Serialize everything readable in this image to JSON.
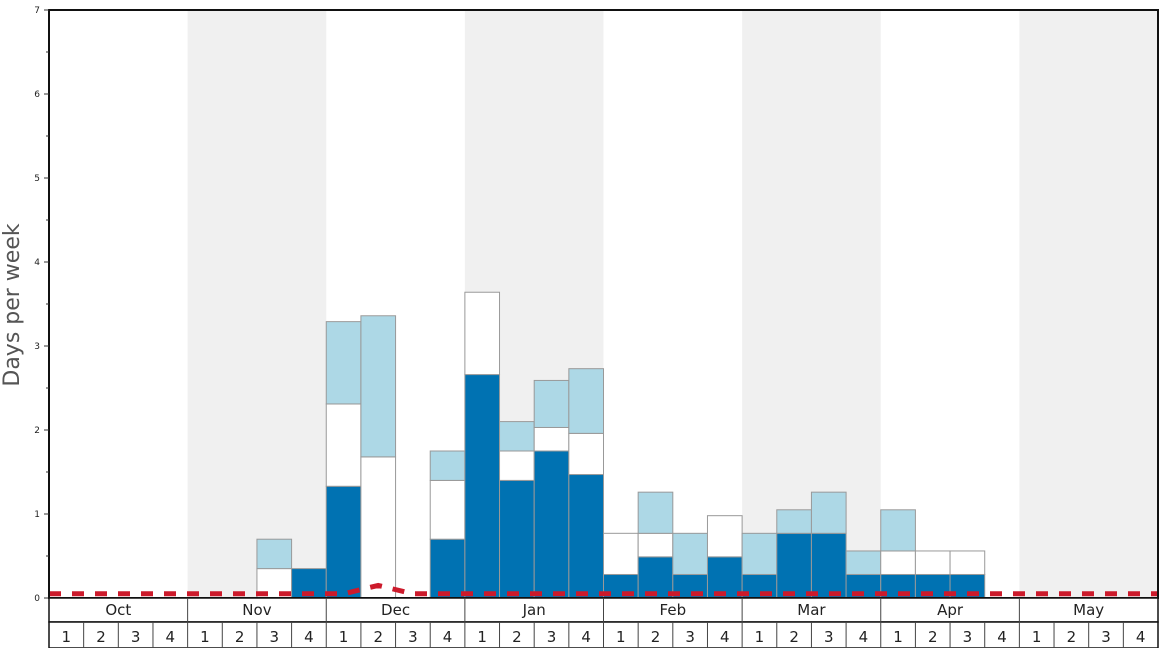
{
  "chart_data": {
    "type": "bar",
    "stacked": true,
    "ylabel": "Days per week",
    "ylim": [
      0,
      7
    ],
    "yticks": [
      "0",
      "1",
      "2",
      "3",
      "4",
      "5",
      "6",
      "7"
    ],
    "months": [
      "Oct",
      "Nov",
      "Dec",
      "Jan",
      "Feb",
      "Mar",
      "Apr",
      "May"
    ],
    "week_labels": [
      "1",
      "2",
      "3",
      "4"
    ],
    "alternating_month_shading": true,
    "categories": [
      "Oct-1",
      "Oct-2",
      "Oct-3",
      "Oct-4",
      "Nov-1",
      "Nov-2",
      "Nov-3",
      "Nov-4",
      "Dec-1",
      "Dec-2",
      "Dec-3",
      "Dec-4",
      "Jan-1",
      "Jan-2",
      "Jan-3",
      "Jan-4",
      "Feb-1",
      "Feb-2",
      "Feb-3",
      "Feb-4",
      "Mar-1",
      "Mar-2",
      "Mar-3",
      "Mar-4",
      "Apr-1",
      "Apr-2",
      "Apr-3",
      "Apr-4",
      "May-1",
      "May-2",
      "May-3",
      "May-4"
    ],
    "series": [
      {
        "color": "#0072b2",
        "values": [
          0,
          0,
          0,
          0,
          0,
          0,
          0,
          0.35,
          1.33,
          0,
          0,
          0.7,
          2.66,
          1.4,
          1.75,
          1.47,
          0.28,
          0.49,
          0.28,
          0.49,
          0.28,
          0.77,
          0.77,
          0.28,
          0.28,
          0.28,
          0.28,
          0,
          0,
          0,
          0,
          0
        ]
      },
      {
        "color": "#ffffff",
        "values": [
          0,
          0,
          0,
          0,
          0,
          0,
          0.35,
          0,
          0.98,
          1.68,
          0,
          0.7,
          0.98,
          0.35,
          0.28,
          0.49,
          0.49,
          0.28,
          0,
          0.49,
          0,
          0,
          0,
          0,
          0.28,
          0.28,
          0.28,
          0,
          0,
          0,
          0,
          0
        ]
      },
      {
        "color": "#add8e6",
        "values": [
          0,
          0,
          0,
          0,
          0,
          0,
          0.35,
          0,
          0.98,
          1.68,
          0,
          0.35,
          0,
          0.35,
          0.56,
          0.77,
          0,
          0.49,
          0.49,
          0,
          0.49,
          0.28,
          0.49,
          0.28,
          0.49,
          0,
          0,
          0,
          0,
          0,
          0,
          0
        ]
      }
    ],
    "reference_line": {
      "color": "#cc1a2b",
      "style": "dashed",
      "values": [
        0.05,
        0.05,
        0.05,
        0.05,
        0.05,
        0.05,
        0.05,
        0.05,
        0.05,
        0.15,
        0.05,
        0.05,
        0.05,
        0.05,
        0.05,
        0.05,
        0.05,
        0.05,
        0.05,
        0.05,
        0.05,
        0.05,
        0.05,
        0.05,
        0.05,
        0.05,
        0.05,
        0.05,
        0.05,
        0.05,
        0.05,
        0.05
      ]
    },
    "grid": false
  }
}
